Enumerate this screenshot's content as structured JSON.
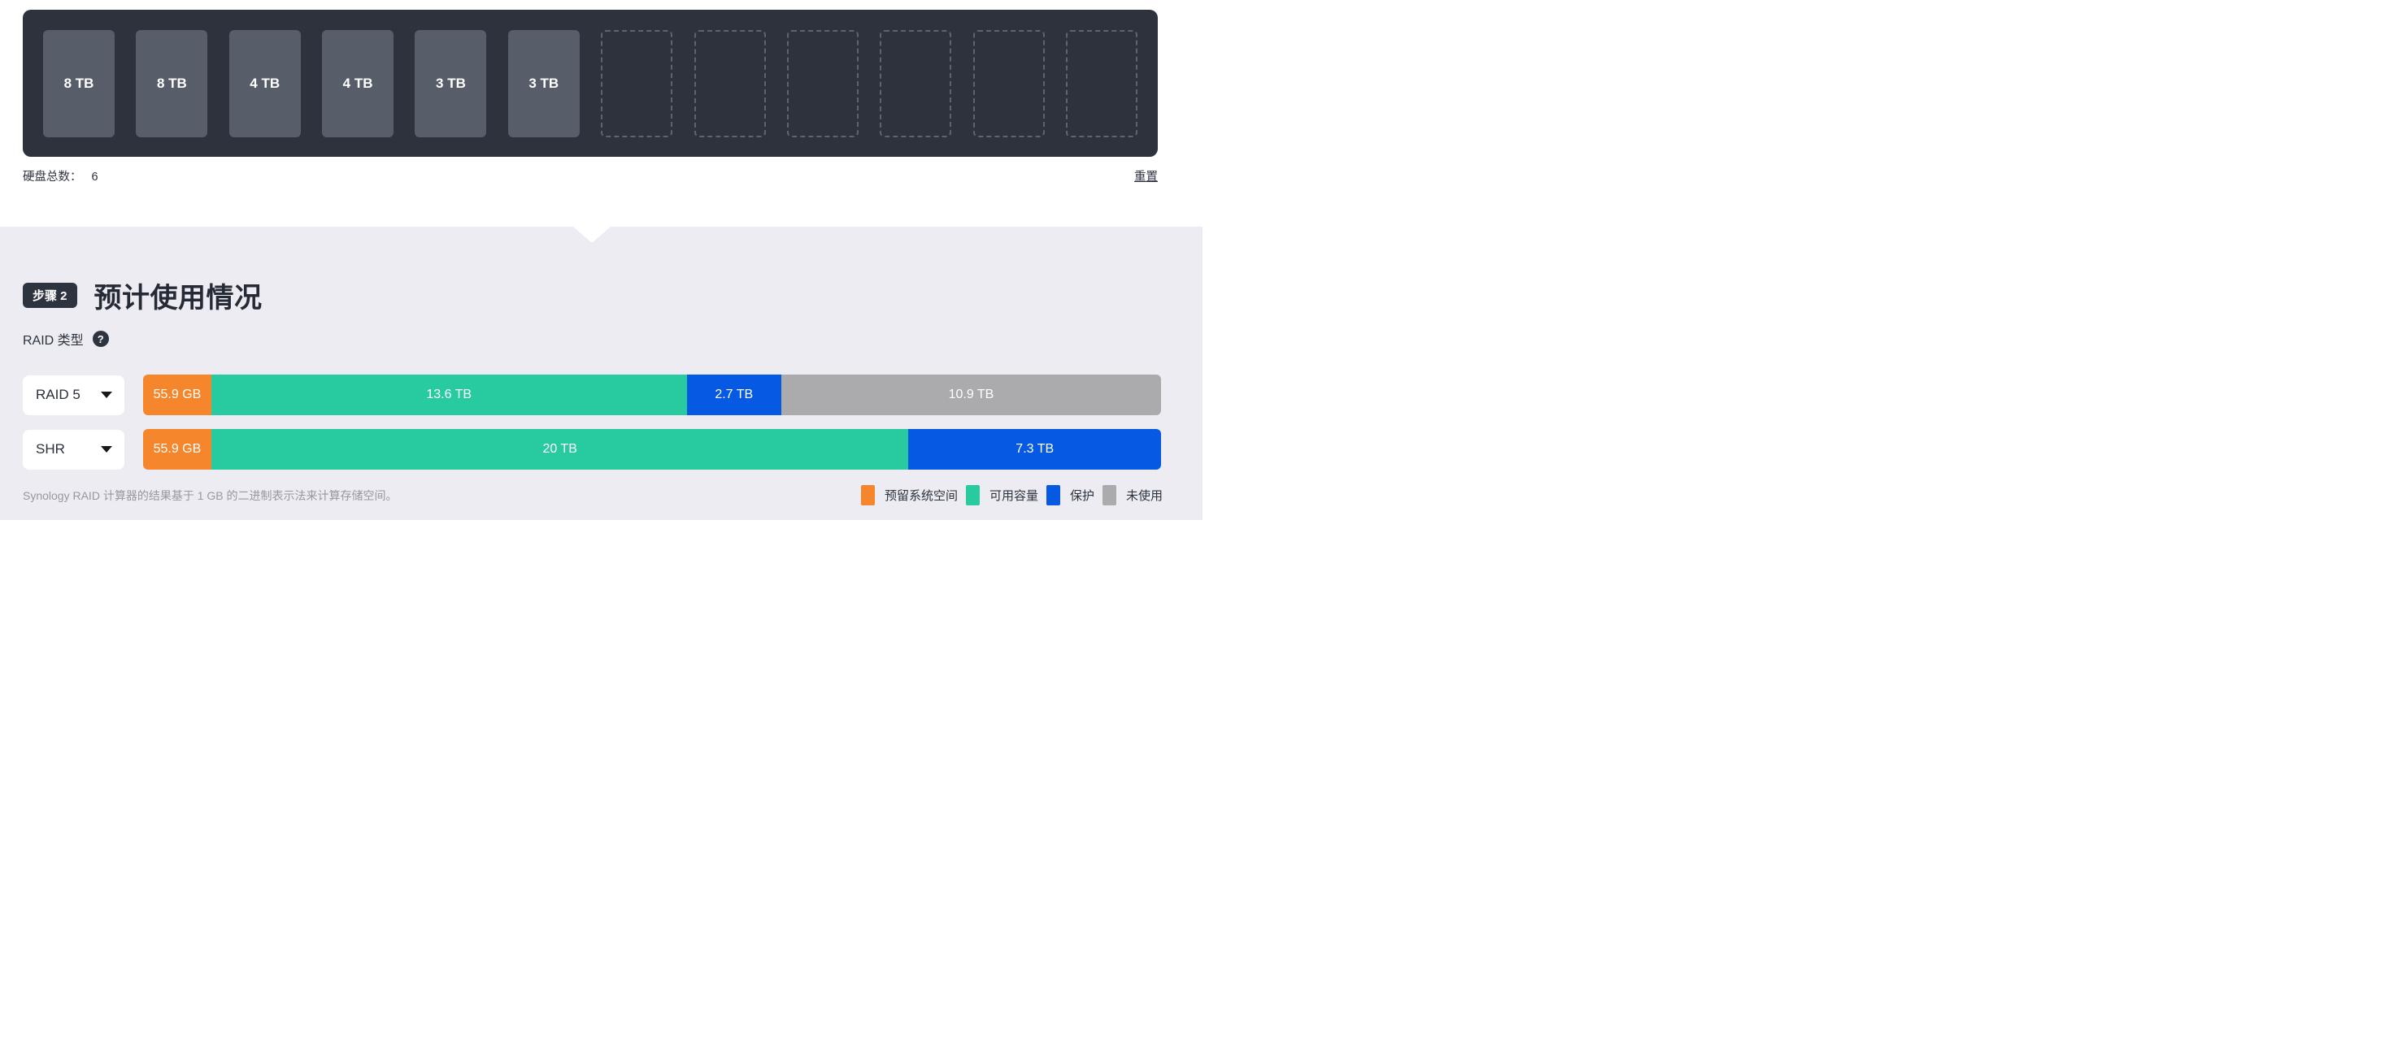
{
  "colors": {
    "orange": "#F6862B",
    "teal": "#28CB9F",
    "blue": "#0559E3",
    "gray": "#ABABAE",
    "panel": "#2D323D",
    "tile": "#575D69",
    "section_bg": "#ECECF2",
    "dark_text": "#2E3340"
  },
  "drive_bay": {
    "drives": [
      "8 TB",
      "8 TB",
      "4 TB",
      "4 TB",
      "3 TB",
      "3 TB"
    ],
    "empty_slot_count": 6,
    "total_label": "硬盘总数：",
    "total_value": "6",
    "reset_label": "重置"
  },
  "usage_section": {
    "step_badge": "步骤 2",
    "title": "预计使用情况",
    "raid_type_label": "RAID 类型",
    "help_icon": "?",
    "rows": [
      {
        "selector": "RAID 5",
        "segments": [
          {
            "label": "55.9 GB",
            "color": "orange",
            "pct": 6.7
          },
          {
            "label": "13.6 TB",
            "color": "teal",
            "pct": 46.7
          },
          {
            "label": "2.7 TB",
            "color": "blue",
            "pct": 9.3
          },
          {
            "label": "10.9 TB",
            "color": "gray",
            "pct": 37.3
          }
        ]
      },
      {
        "selector": "SHR",
        "segments": [
          {
            "label": "55.9 GB",
            "color": "orange",
            "pct": 6.7
          },
          {
            "label": "20 TB",
            "color": "teal",
            "pct": 68.5
          },
          {
            "label": "7.3 TB",
            "color": "blue",
            "pct": 24.8
          }
        ]
      }
    ],
    "footnote": "Synology RAID 计算器的结果基于 1 GB 的二进制表示法来计算存储空间。",
    "legend": [
      {
        "label": "预留系统空间",
        "color": "orange"
      },
      {
        "label": "可用容量",
        "color": "teal"
      },
      {
        "label": "保护",
        "color": "blue"
      },
      {
        "label": "未使用",
        "color": "gray"
      }
    ]
  }
}
